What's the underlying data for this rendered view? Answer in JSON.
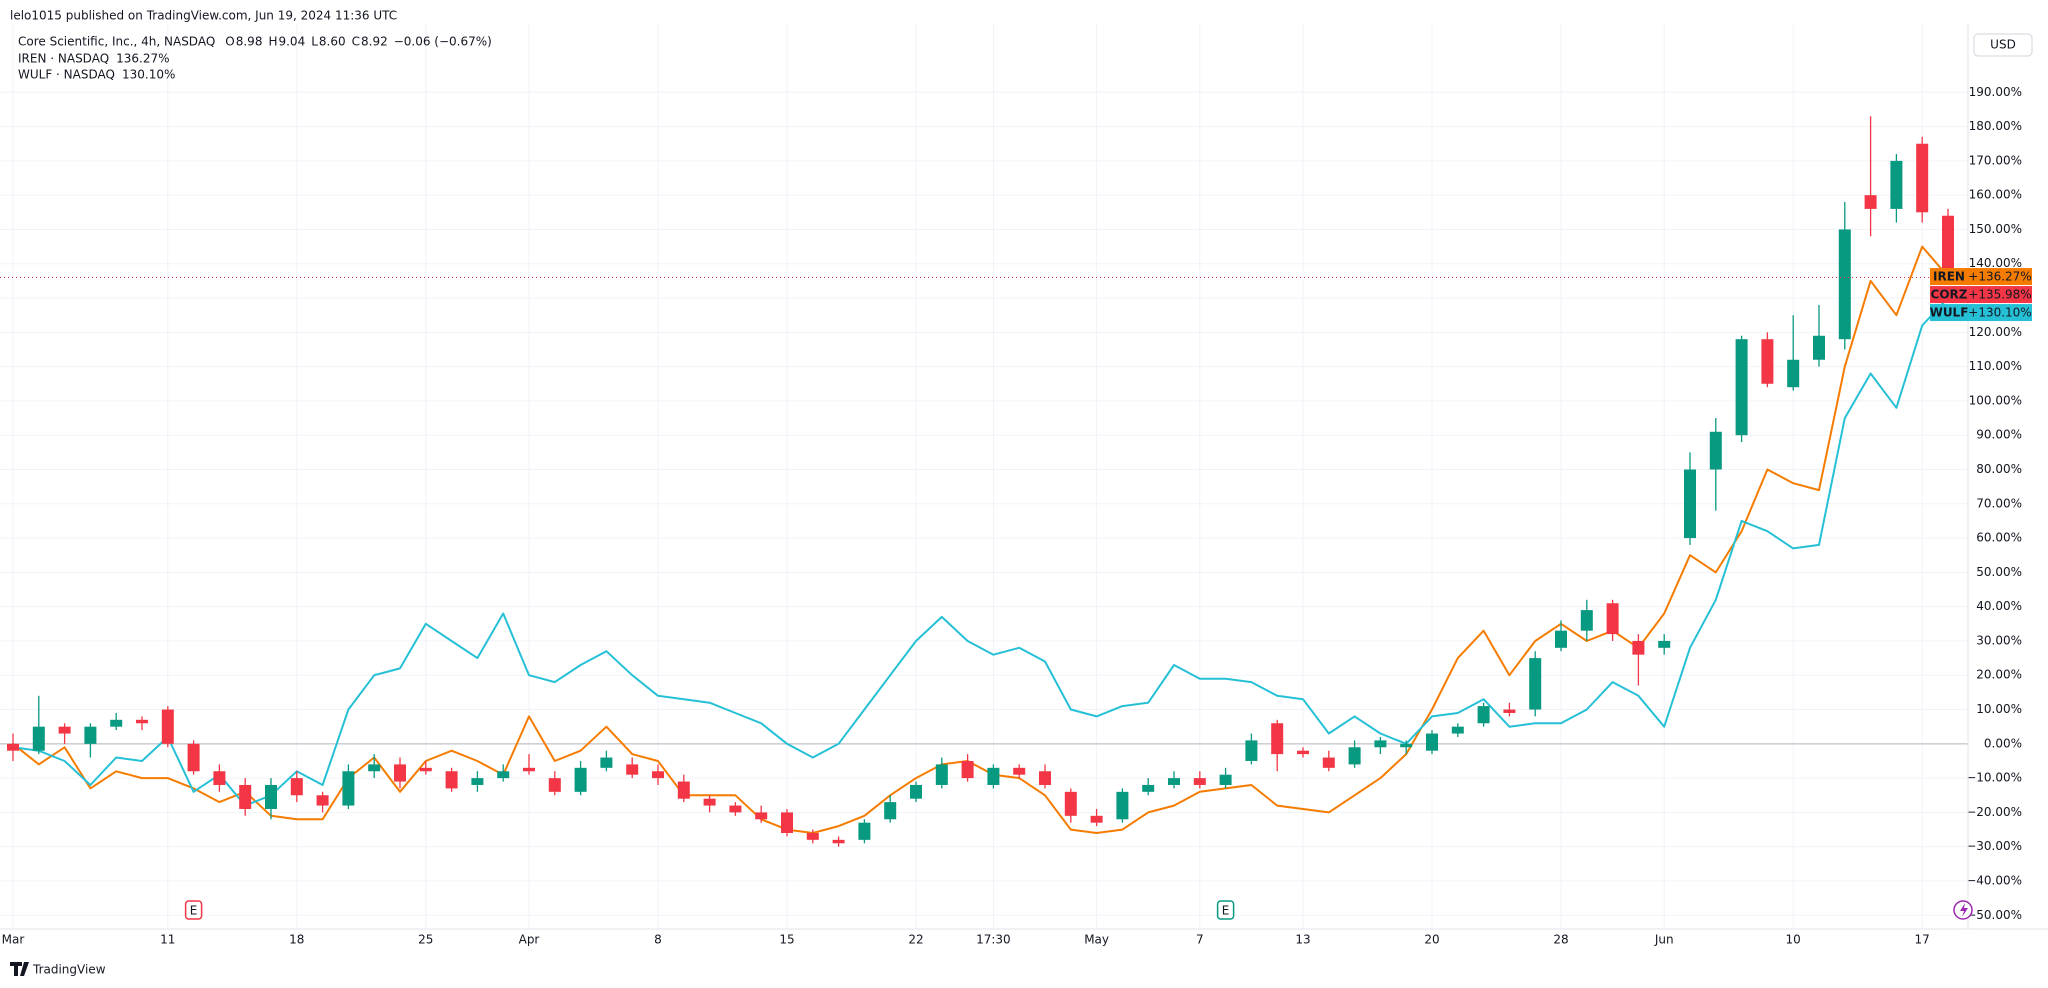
{
  "header": "lelo1015 published on TradingView.com, Jun 19, 2024 11:36 UTC",
  "brand": "TradingView",
  "chart_data": {
    "type": "candlestick",
    "title": "Core Scientific, Inc., 4h, NASDAQ",
    "ohlc": [
      {
        "label": "O",
        "text": "8.98"
      },
      {
        "label": "H",
        "text": "9.04"
      },
      {
        "label": "L",
        "text": "8.60"
      },
      {
        "label": "C",
        "text": "8.92"
      }
    ],
    "change": "−0.06 (−0.67%)",
    "currency": "USD",
    "grid": true,
    "price_line": true,
    "categories": [
      "Mar",
      null,
      null,
      null,
      null,
      null,
      "11",
      null,
      null,
      null,
      null,
      "18",
      null,
      null,
      null,
      null,
      "25",
      null,
      null,
      null,
      "Apr",
      null,
      null,
      null,
      null,
      "8",
      null,
      null,
      null,
      null,
      "15",
      null,
      null,
      null,
      null,
      "22",
      null,
      null,
      "17:30",
      null,
      null,
      null,
      "May",
      null,
      null,
      null,
      "7",
      null,
      null,
      null,
      "13",
      null,
      null,
      null,
      null,
      "20",
      null,
      null,
      null,
      null,
      "28",
      null,
      null,
      null,
      "Jun",
      null,
      null,
      null,
      null,
      "10",
      null,
      null,
      null,
      null,
      "17",
      null
    ],
    "ylim": [
      -54,
      200
    ],
    "yticks": [
      {
        "value": -50,
        "label": "−50.00%"
      },
      {
        "value": -40,
        "label": "−40.00%"
      },
      {
        "value": -30,
        "label": "−30.00%"
      },
      {
        "value": -20,
        "label": "−20.00%"
      },
      {
        "value": -10,
        "label": "−10.00%"
      },
      {
        "value": 0,
        "label": "0.00%"
      },
      {
        "value": 10,
        "label": "10.00%"
      },
      {
        "value": 20,
        "label": "20.00%"
      },
      {
        "value": 30,
        "label": "30.00%"
      },
      {
        "value": 40,
        "label": "40.00%"
      },
      {
        "value": 50,
        "label": "50.00%"
      },
      {
        "value": 60,
        "label": "60.00%"
      },
      {
        "value": 70,
        "label": "70.00%"
      },
      {
        "value": 80,
        "label": "80.00%"
      },
      {
        "value": 90,
        "label": "90.00%"
      },
      {
        "value": 100,
        "label": "100.00%"
      },
      {
        "value": 110,
        "label": "110.00%"
      },
      {
        "value": 120,
        "label": "120.00%"
      },
      {
        "value": 130,
        "label": "130.00%"
      },
      {
        "value": 140,
        "label": "140.00%"
      },
      {
        "value": 150,
        "label": "150.00%"
      },
      {
        "value": 160,
        "label": "160.00%"
      },
      {
        "value": 170,
        "label": "170.00%"
      },
      {
        "value": 180,
        "label": "180.00%"
      },
      {
        "value": 190,
        "label": "190.00%"
      }
    ],
    "events": [
      {
        "label": "E"
      },
      {
        "label": "E"
      }
    ],
    "series": [
      {
        "name": "CORZ",
        "type": "candlestick",
        "up_color": "#089981",
        "down_color": "#f23645",
        "badge_label": "+135.98%",
        "open": [
          0,
          -2,
          5,
          0,
          5,
          7,
          10,
          0,
          -8,
          -12,
          -19,
          -10,
          -15,
          -18,
          -8,
          -6,
          -7,
          -8,
          -12,
          -10,
          -7,
          -10,
          -14,
          -7,
          -6,
          -8,
          -11,
          -16,
          -18,
          -20,
          -20,
          -26,
          -28,
          -28,
          -22,
          -16,
          -12,
          -5,
          -12,
          -7,
          -8,
          -14,
          -21,
          -22,
          -14,
          -12,
          -10,
          -12,
          -5,
          6,
          -2,
          -4,
          -6,
          -1,
          -1,
          -2,
          3,
          6,
          10,
          10,
          28,
          33,
          41,
          30,
          28,
          60,
          80,
          90,
          118,
          104,
          112,
          118,
          160,
          156,
          175,
          154
        ],
        "high": [
          3,
          14,
          6,
          6,
          9,
          8,
          11,
          1,
          -6,
          -10,
          -10,
          -8,
          -14,
          -6,
          -3,
          -4,
          -5,
          -7,
          -8,
          -6,
          -3,
          -8,
          -5,
          -2,
          -4,
          -6,
          -9,
          -15,
          -17,
          -18,
          -19,
          -25,
          -27,
          -22,
          -15,
          -11,
          -4,
          -3,
          -6,
          -6,
          -6,
          -13,
          -19,
          -13,
          -10,
          -8,
          -8,
          -7,
          3,
          7,
          -1,
          -2,
          1,
          2,
          1,
          4,
          6,
          12,
          12,
          27,
          36,
          42,
          42,
          32,
          32,
          85,
          95,
          119,
          120,
          125,
          128,
          158,
          183,
          172,
          177,
          156
        ],
        "low": [
          -5,
          -3,
          0,
          -4,
          4,
          4,
          -1,
          -9,
          -14,
          -21,
          -22,
          -17,
          -20,
          -19,
          -10,
          -13,
          -9,
          -14,
          -14,
          -11,
          -9,
          -15,
          -15,
          -8,
          -10,
          -12,
          -17,
          -20,
          -21,
          -23,
          -27,
          -29,
          -30,
          -29,
          -23,
          -17,
          -13,
          -11,
          -13,
          -10,
          -13,
          -23,
          -24,
          -23,
          -15,
          -13,
          -13,
          -13,
          -6,
          -8,
          -4,
          -8,
          -7,
          -3,
          -3,
          -3,
          2,
          5,
          8,
          8,
          27,
          30,
          30,
          17,
          26,
          58,
          68,
          88,
          104,
          103,
          110,
          115,
          148,
          152,
          152,
          134
        ],
        "close": [
          -2,
          5,
          3,
          5,
          7,
          6,
          0,
          -8,
          -12,
          -19,
          -12,
          -15,
          -18,
          -8,
          -6,
          -11,
          -8,
          -13,
          -10,
          -8,
          -8,
          -14,
          -7,
          -4,
          -9,
          -10,
          -16,
          -18,
          -20,
          -22,
          -26,
          -28,
          -29,
          -23,
          -17,
          -12,
          -6,
          -10,
          -7,
          -9,
          -12,
          -21,
          -23,
          -14,
          -12,
          -10,
          -12,
          -9,
          1,
          -3,
          -3,
          -7,
          -1,
          1,
          0,
          3,
          5,
          11,
          9,
          25,
          33,
          39,
          32,
          26,
          30,
          80,
          91,
          118,
          105,
          112,
          119,
          150,
          156,
          170,
          155,
          135.98
        ]
      },
      {
        "name": "IREN",
        "type": "line",
        "color": "#f57c00",
        "legend_label": "IREN · NASDAQ",
        "legend_value": "136.27%",
        "badge_label": "+136.27%",
        "values": [
          0,
          -6,
          -1,
          -13,
          -8,
          -10,
          -10,
          -13,
          -17,
          -14,
          -21,
          -22,
          -22,
          -10,
          -4,
          -14,
          -5,
          -2,
          -5,
          -9,
          8,
          -5,
          -2,
          5,
          -3,
          -5,
          -15,
          -15,
          -15,
          -22,
          -25,
          -26,
          -24,
          -21,
          -15,
          -10,
          -6,
          -5,
          -9,
          -10,
          -15,
          -25,
          -26,
          -25,
          -20,
          -18,
          -14,
          -13,
          -12,
          -18,
          -19,
          -20,
          -15,
          -10,
          -3,
          10,
          25,
          33,
          20,
          30,
          35,
          30,
          33,
          28,
          38,
          55,
          50,
          62,
          80,
          76,
          74,
          110,
          135,
          125,
          145,
          136.27
        ]
      },
      {
        "name": "WULF",
        "type": "line",
        "color": "#26c0d6",
        "legend_label": "WULF · NASDAQ",
        "legend_value": "130.10%",
        "badge_label": "+130.10%",
        "values": [
          -1,
          -2,
          -5,
          -12,
          -4,
          -5,
          2,
          -14,
          -9,
          -18,
          -15,
          -8,
          -12,
          10,
          20,
          22,
          35,
          30,
          25,
          38,
          20,
          18,
          23,
          27,
          20,
          14,
          13,
          12,
          9,
          6,
          0,
          -4,
          0,
          10,
          20,
          30,
          37,
          30,
          26,
          28,
          24,
          10,
          8,
          11,
          12,
          23,
          19,
          19,
          18,
          14,
          13,
          3,
          8,
          3,
          0,
          8,
          9,
          13,
          5,
          6,
          6,
          10,
          18,
          14,
          5,
          28,
          42,
          65,
          62,
          57,
          58,
          95,
          108,
          98,
          122,
          130.1
        ]
      }
    ]
  }
}
